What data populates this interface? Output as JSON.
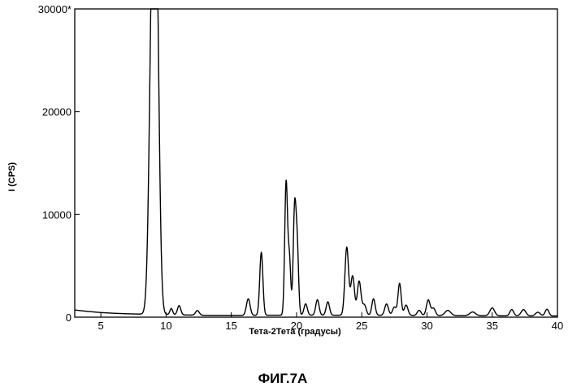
{
  "chart_data": {
    "type": "line",
    "title": "",
    "xlabel": "Тета-2Тета (градусы)",
    "ylabel": "I  (CPS)",
    "xlim": [
      3,
      40
    ],
    "ylim": [
      0,
      30000
    ],
    "grid": false,
    "legend": "none",
    "line_color": "#000000",
    "x_ticks": [
      5,
      10,
      15,
      20,
      25,
      30,
      35,
      40
    ],
    "x_tick_labels": [
      "5",
      "10",
      "15",
      "20",
      "25",
      "30",
      "35",
      "40"
    ],
    "y_ticks": [
      0,
      10000,
      20000,
      30000
    ],
    "y_tick_labels": [
      "0",
      "10000",
      "20000",
      "30000*"
    ],
    "baseline": [
      [
        3.0,
        700
      ],
      [
        4.0,
        560
      ],
      [
        5.0,
        450
      ],
      [
        6.0,
        380
      ],
      [
        7.0,
        330
      ],
      [
        8.0,
        300
      ],
      [
        9.5,
        280
      ],
      [
        10.5,
        240
      ],
      [
        13.0,
        180
      ],
      [
        16.0,
        180
      ],
      [
        20.0,
        200
      ],
      [
        25.0,
        190
      ],
      [
        30.0,
        170
      ],
      [
        35.0,
        150
      ],
      [
        40.0,
        120
      ]
    ],
    "peaks": [
      {
        "x": 8.95,
        "y": 30000,
        "w": 0.32
      },
      {
        "x": 9.25,
        "y": 30000,
        "w": 0.3
      },
      {
        "x": 10.4,
        "y": 600,
        "w": 0.15
      },
      {
        "x": 11.0,
        "y": 900,
        "w": 0.18
      },
      {
        "x": 12.4,
        "y": 450,
        "w": 0.2
      },
      {
        "x": 16.3,
        "y": 1600,
        "w": 0.2
      },
      {
        "x": 17.3,
        "y": 6100,
        "w": 0.17
      },
      {
        "x": 19.2,
        "y": 12800,
        "w": 0.15
      },
      {
        "x": 19.45,
        "y": 5500,
        "w": 0.15
      },
      {
        "x": 19.85,
        "y": 10000,
        "w": 0.15
      },
      {
        "x": 20.05,
        "y": 6500,
        "w": 0.15
      },
      {
        "x": 20.7,
        "y": 1100,
        "w": 0.18
      },
      {
        "x": 21.6,
        "y": 1500,
        "w": 0.18
      },
      {
        "x": 22.4,
        "y": 1300,
        "w": 0.18
      },
      {
        "x": 23.85,
        "y": 6600,
        "w": 0.2
      },
      {
        "x": 24.3,
        "y": 3800,
        "w": 0.2
      },
      {
        "x": 24.8,
        "y": 3300,
        "w": 0.2
      },
      {
        "x": 25.2,
        "y": 1000,
        "w": 0.2
      },
      {
        "x": 25.9,
        "y": 1600,
        "w": 0.18
      },
      {
        "x": 26.9,
        "y": 1100,
        "w": 0.2
      },
      {
        "x": 27.5,
        "y": 800,
        "w": 0.2
      },
      {
        "x": 27.9,
        "y": 3100,
        "w": 0.17
      },
      {
        "x": 28.4,
        "y": 1000,
        "w": 0.2
      },
      {
        "x": 29.4,
        "y": 500,
        "w": 0.2
      },
      {
        "x": 30.1,
        "y": 1500,
        "w": 0.2
      },
      {
        "x": 30.5,
        "y": 700,
        "w": 0.2
      },
      {
        "x": 31.6,
        "y": 500,
        "w": 0.3
      },
      {
        "x": 33.5,
        "y": 350,
        "w": 0.3
      },
      {
        "x": 35.0,
        "y": 750,
        "w": 0.25
      },
      {
        "x": 36.5,
        "y": 600,
        "w": 0.2
      },
      {
        "x": 37.4,
        "y": 600,
        "w": 0.25
      },
      {
        "x": 38.5,
        "y": 350,
        "w": 0.25
      },
      {
        "x": 39.2,
        "y": 650,
        "w": 0.2
      }
    ]
  },
  "figure": {
    "caption": "ФИГ.7А"
  }
}
